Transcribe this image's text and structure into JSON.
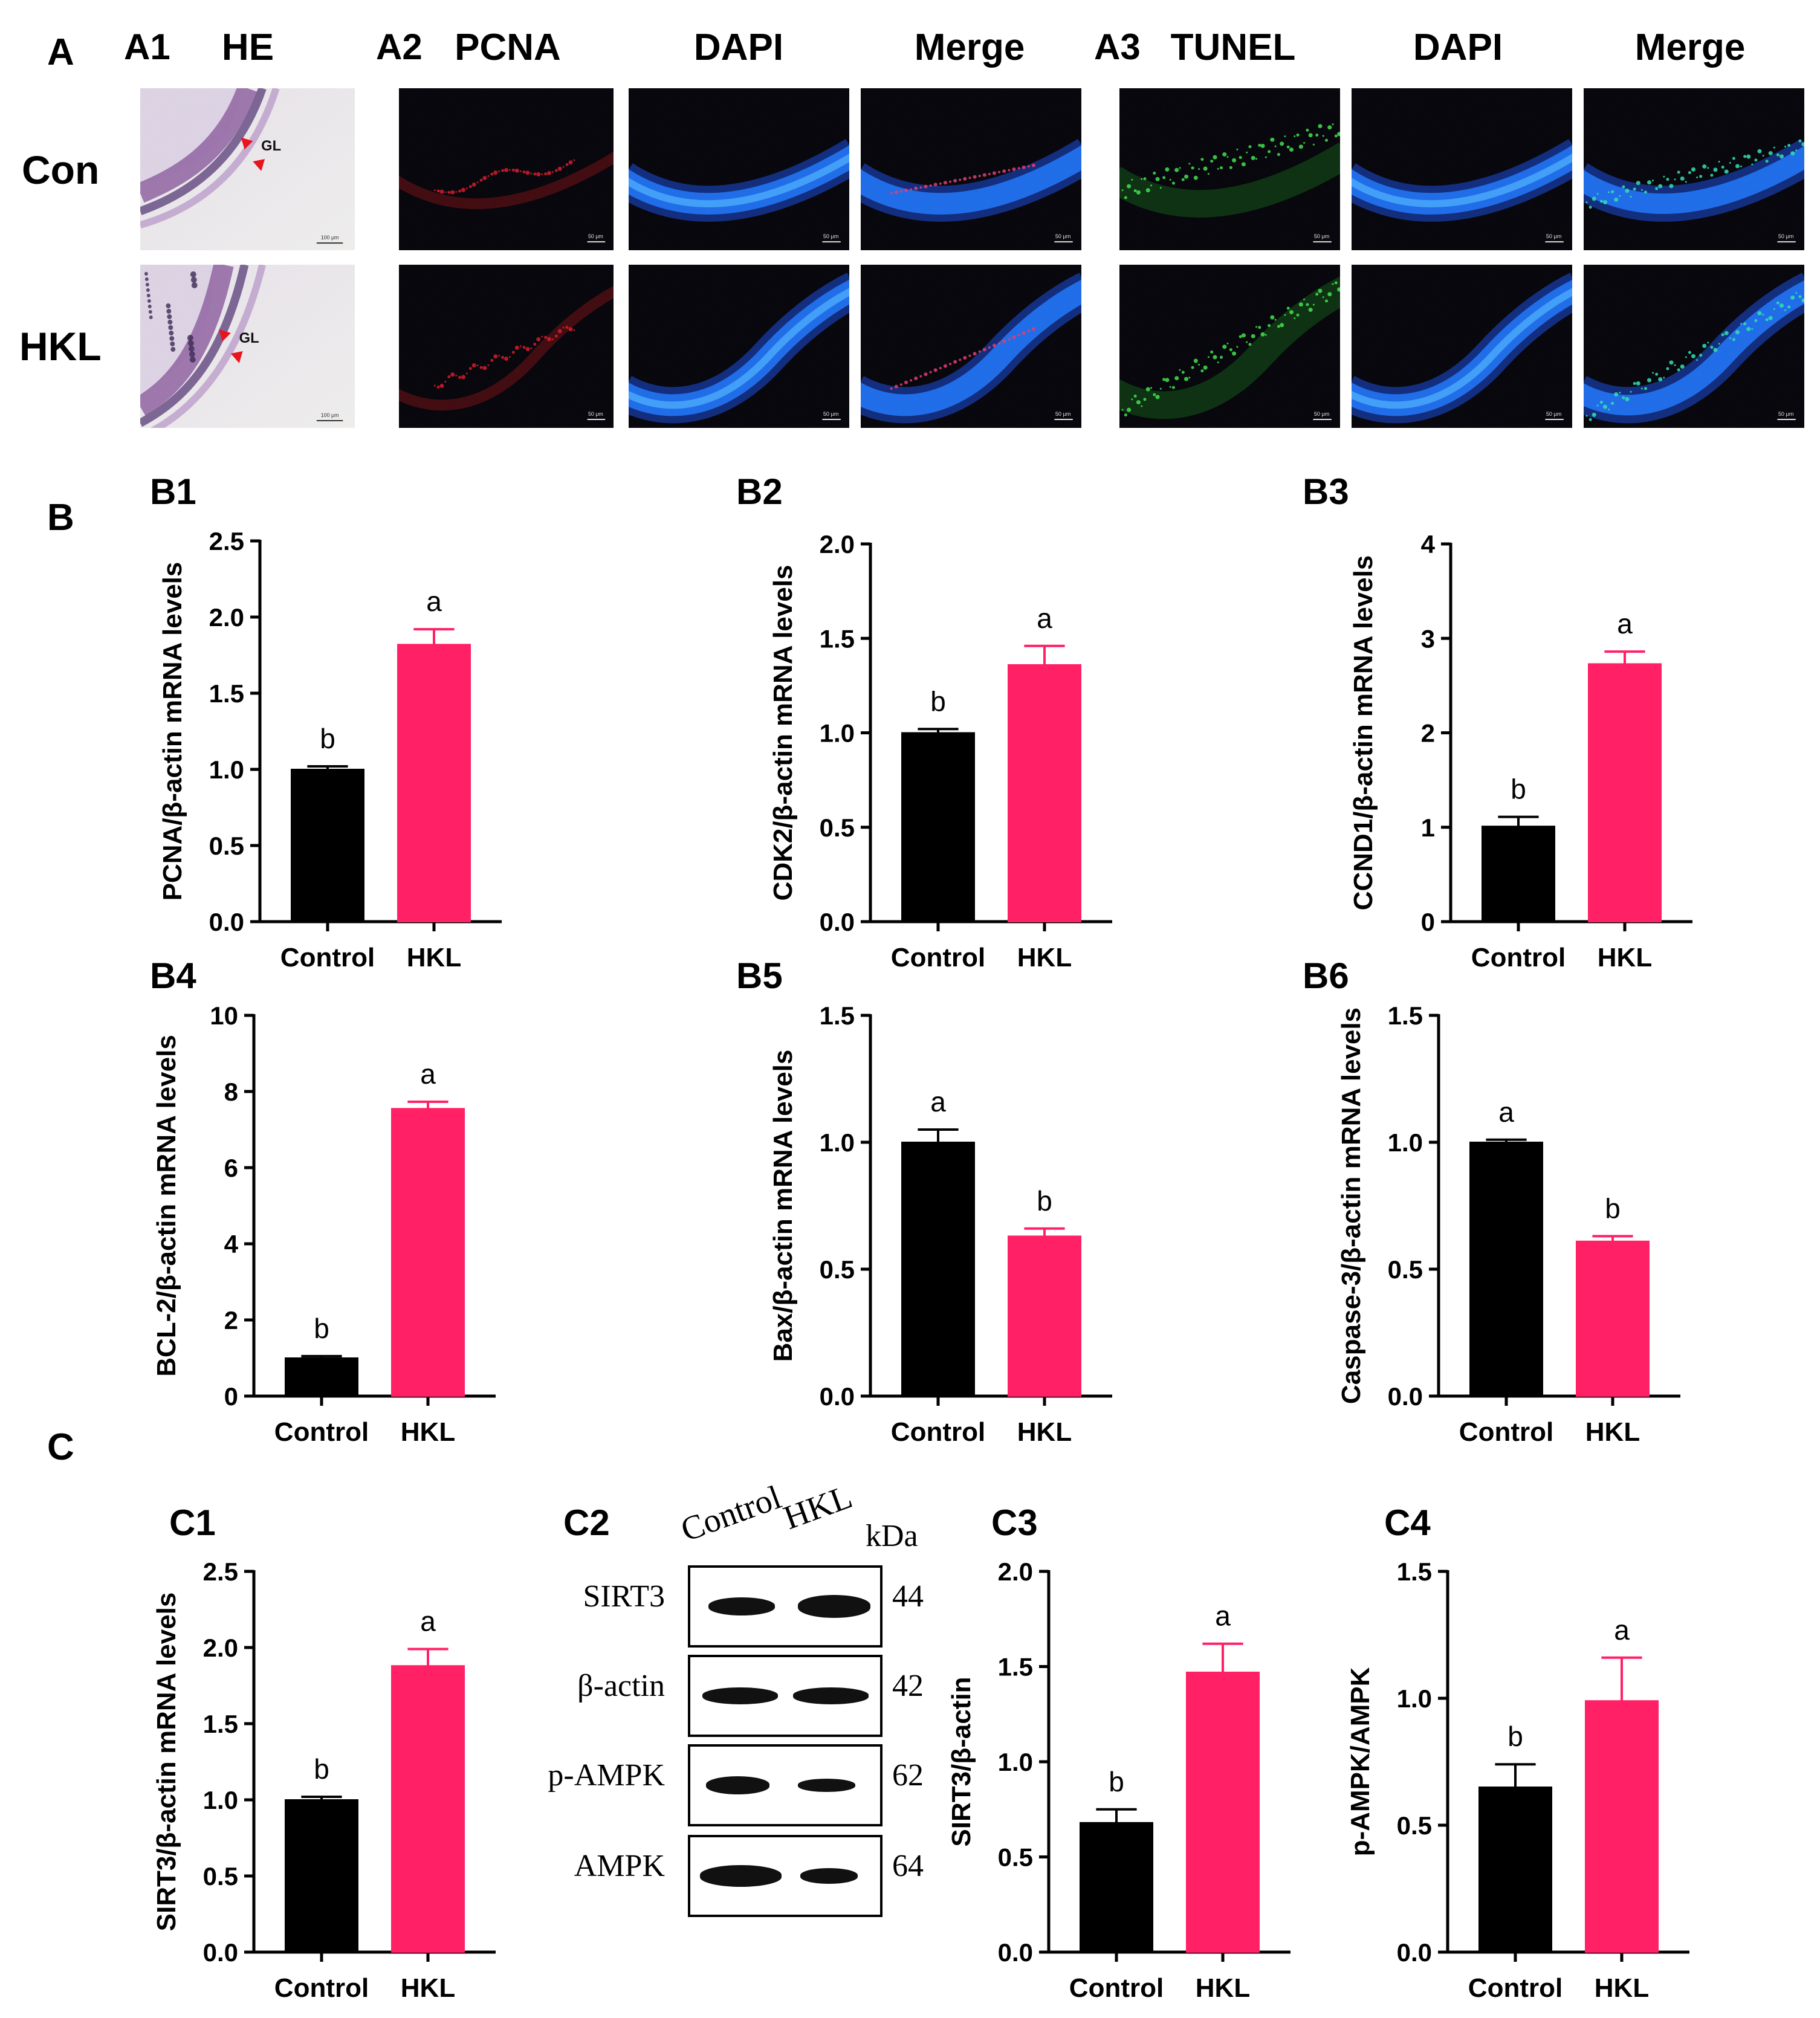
{
  "figure": {
    "panel_labels": {
      "A": "A",
      "B": "B",
      "C": "C"
    },
    "micro": {
      "A1_label": "A1",
      "A2_label": "A2",
      "A3_label": "A3",
      "col_he": "HE",
      "col_pcna": "PCNA",
      "col_dapi_1": "DAPI",
      "col_merge_1": "Merge",
      "col_tunel": "TUNEL",
      "col_dapi_2": "DAPI",
      "col_merge_2": "Merge",
      "row_con": "Con",
      "row_hkl": "HKL",
      "gl_label": "GL",
      "scale_he": "100 μm",
      "scale_fluo": "50 μm"
    },
    "western": {
      "label": "C2",
      "lane_control": "Control",
      "lane_hkl": "HKL",
      "kda_header": "kDa",
      "rows": [
        {
          "name": "SIRT3",
          "kda": "44"
        },
        {
          "name": "β-actin",
          "kda": "42"
        },
        {
          "name": "p-AMPK",
          "kda": "62"
        },
        {
          "name": "AMPK",
          "kda": "64"
        }
      ]
    },
    "colors": {
      "control": "#000000",
      "hkl": "#ff2066"
    }
  },
  "chart_data": [
    {
      "id": "B1",
      "type": "bar",
      "ylabel": "PCNA/β-actin mRNA levels",
      "categories": [
        "Control",
        "HKL"
      ],
      "values": [
        1.0,
        1.82
      ],
      "errors": [
        0.02,
        0.1
      ],
      "letters": [
        "b",
        "a"
      ],
      "ylim": [
        0,
        2.5
      ],
      "ticks": [
        "0.0",
        "0.5",
        "1.0",
        "1.5",
        "2.0",
        "2.5"
      ]
    },
    {
      "id": "B2",
      "type": "bar",
      "ylabel": "CDK2/β-actin mRNA levels",
      "categories": [
        "Control",
        "HKL"
      ],
      "values": [
        1.0,
        1.36
      ],
      "errors": [
        0.02,
        0.1
      ],
      "letters": [
        "b",
        "a"
      ],
      "ylim": [
        0,
        2.0
      ],
      "ticks": [
        "0.0",
        "0.5",
        "1.0",
        "1.5",
        "2.0"
      ]
    },
    {
      "id": "B3",
      "type": "bar",
      "ylabel": "CCND1/β-actin mRNA levels",
      "categories": [
        "Control",
        "HKL"
      ],
      "values": [
        1.01,
        2.73
      ],
      "errors": [
        0.1,
        0.13
      ],
      "letters": [
        "b",
        "a"
      ],
      "ylim": [
        0,
        4
      ],
      "ticks": [
        "0",
        "1",
        "2",
        "3",
        "4"
      ]
    },
    {
      "id": "B4",
      "type": "bar",
      "ylabel": "BCL-2/β-actin mRNA levels",
      "categories": [
        "Control",
        "HKL"
      ],
      "values": [
        1.0,
        7.55
      ],
      "errors": [
        0.05,
        0.18
      ],
      "letters": [
        "b",
        "a"
      ],
      "ylim": [
        0,
        10
      ],
      "ticks": [
        "0",
        "2",
        "4",
        "6",
        "8",
        "10"
      ]
    },
    {
      "id": "B5",
      "type": "bar",
      "ylabel": "Bax/β-actin mRNA levels",
      "categories": [
        "Control",
        "HKL"
      ],
      "values": [
        1.0,
        0.63
      ],
      "errors": [
        0.05,
        0.03
      ],
      "letters": [
        "a",
        "b"
      ],
      "ylim": [
        0,
        1.5
      ],
      "ticks": [
        "0.0",
        "0.5",
        "1.0",
        "1.5"
      ]
    },
    {
      "id": "B6",
      "type": "bar",
      "ylabel": "Caspase-3/β-actin mRNA levels",
      "categories": [
        "Control",
        "HKL"
      ],
      "values": [
        1.0,
        0.61
      ],
      "errors": [
        0.01,
        0.02
      ],
      "letters": [
        "a",
        "b"
      ],
      "ylim": [
        0,
        1.5
      ],
      "ticks": [
        "0.0",
        "0.5",
        "1.0",
        "1.5"
      ]
    },
    {
      "id": "C1",
      "type": "bar",
      "ylabel": "SIRT3/β-actin mRNA levels",
      "categories": [
        "Control",
        "HKL"
      ],
      "values": [
        1.0,
        1.88
      ],
      "errors": [
        0.02,
        0.11
      ],
      "letters": [
        "b",
        "a"
      ],
      "ylim": [
        0,
        2.5
      ],
      "ticks": [
        "0.0",
        "0.5",
        "1.0",
        "1.5",
        "2.0",
        "2.5"
      ]
    },
    {
      "id": "C3",
      "type": "bar",
      "ylabel": "SIRT3/β-actin",
      "categories": [
        "Control",
        "HKL"
      ],
      "values": [
        0.68,
        1.47
      ],
      "errors": [
        0.07,
        0.15
      ],
      "letters": [
        "b",
        "a"
      ],
      "ylim": [
        0,
        2.0
      ],
      "ticks": [
        "0.0",
        "0.5",
        "1.0",
        "1.5",
        "2.0"
      ]
    },
    {
      "id": "C4",
      "type": "bar",
      "ylabel": "p-AMPK/AMPK",
      "categories": [
        "Control",
        "HKL"
      ],
      "values": [
        0.65,
        0.99
      ],
      "errors": [
        0.09,
        0.17
      ],
      "letters": [
        "b",
        "a"
      ],
      "ylim": [
        0,
        1.5
      ],
      "ticks": [
        "0.0",
        "0.5",
        "1.0",
        "1.5"
      ]
    }
  ]
}
